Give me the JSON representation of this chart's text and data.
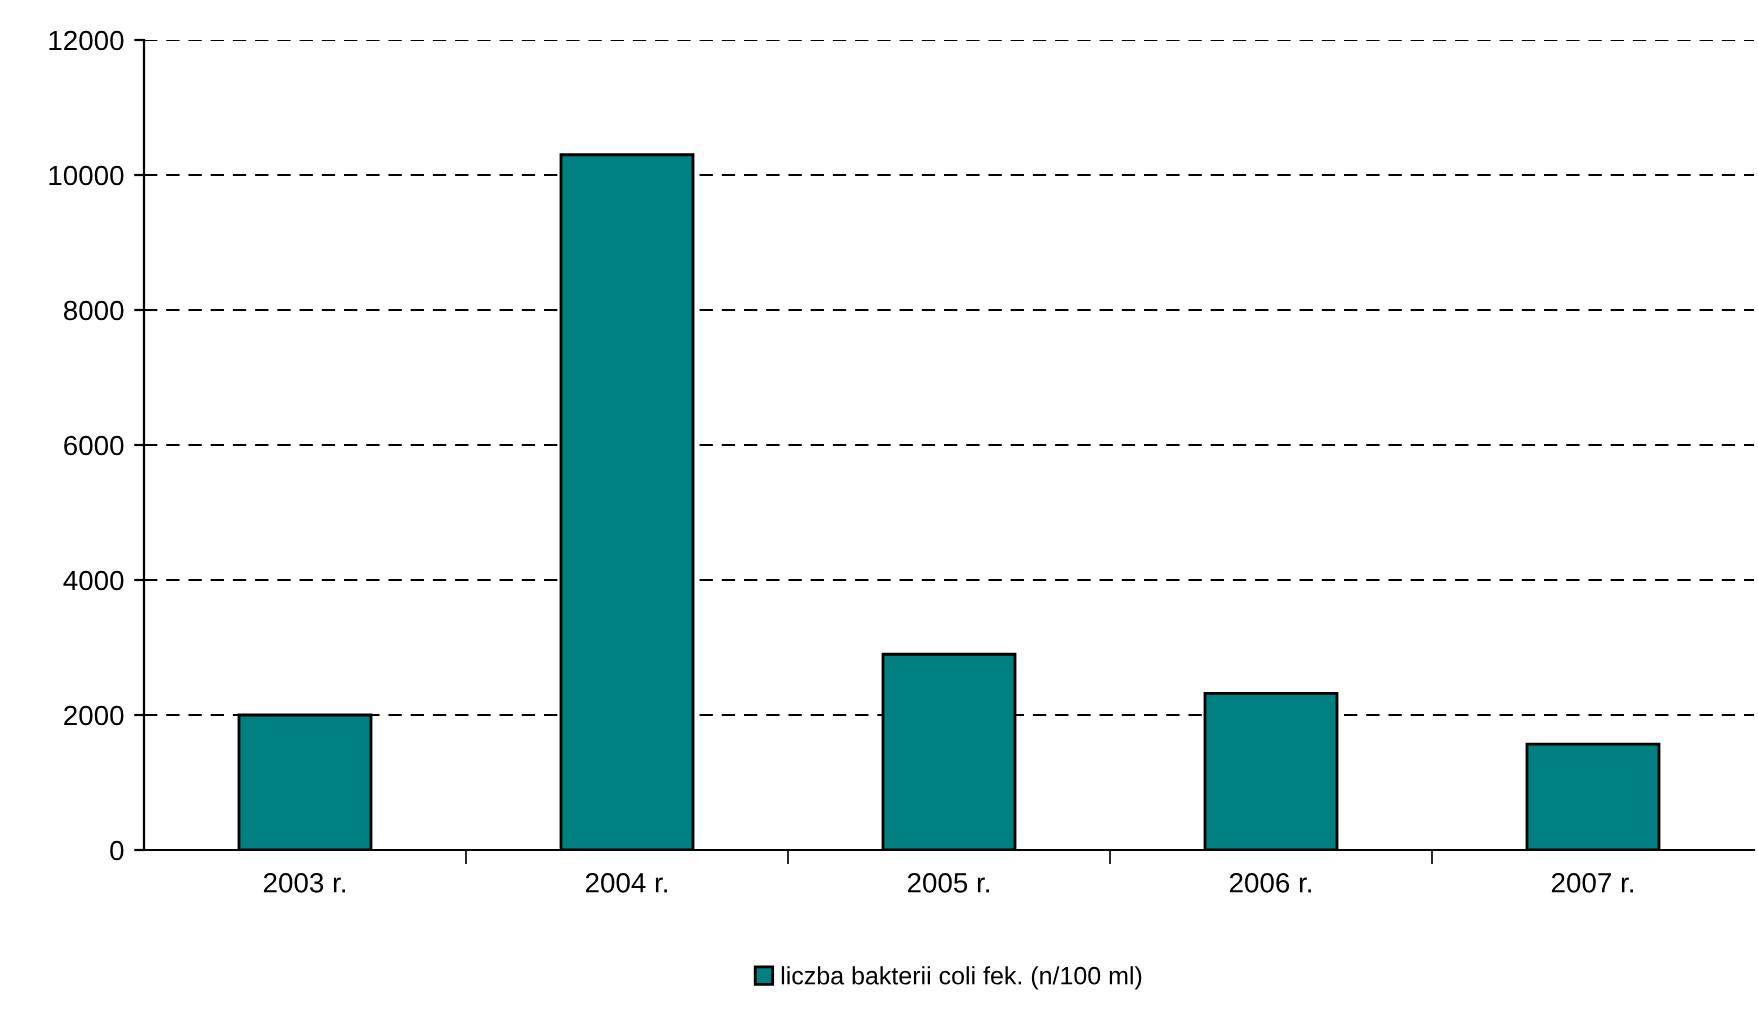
{
  "chart_data": {
    "type": "bar",
    "categories": [
      "2003 r.",
      "2004 r.",
      "2005 r.",
      "2006 r.",
      "2007 r."
    ],
    "series": [
      {
        "name": "liczba bakterii coli fek. (n/100 ml)",
        "color": "#008080",
        "values": [
          2000,
          10300,
          2900,
          2320,
          1570
        ]
      }
    ],
    "ylim": [
      0,
      12000
    ],
    "yticks": [
      0,
      2000,
      4000,
      6000,
      8000,
      10000,
      12000
    ],
    "grid": "y",
    "legend": "bottom"
  }
}
